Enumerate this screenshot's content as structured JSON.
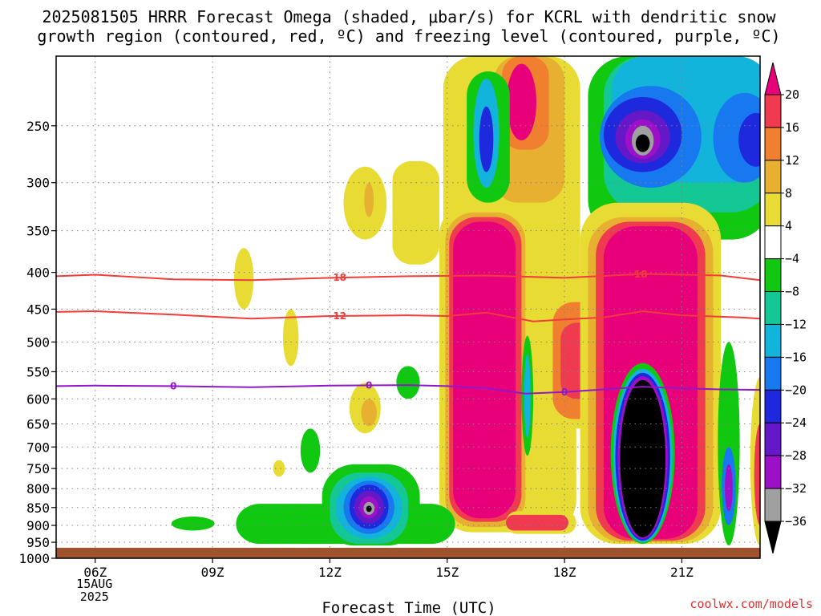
{
  "chart_data": {
    "type": "heatmap",
    "title_line1": "2025081505 HRRR Forecast Omega (shaded, μbar/s) for KCRL with dendritic snow",
    "title_line2": "growth region (contoured, red, ºC) and freezing level (contoured, purple, ºC)",
    "xlabel": "Forecast Time (UTC)",
    "ylabel": "",
    "credit": "coolwx.com/models",
    "x_ticks": [
      {
        "hour": 6,
        "label": "06Z",
        "date": "15AUG",
        "year": "2025"
      },
      {
        "hour": 9,
        "label": "09Z"
      },
      {
        "hour": 12,
        "label": "12Z"
      },
      {
        "hour": 15,
        "label": "15Z"
      },
      {
        "hour": 18,
        "label": "18Z"
      },
      {
        "hour": 21,
        "label": "21Z"
      }
    ],
    "xlim": [
      5,
      23
    ],
    "y_ticks": [
      250,
      300,
      350,
      400,
      450,
      500,
      550,
      600,
      650,
      700,
      750,
      800,
      850,
      900,
      950,
      1000
    ],
    "ylim": [
      200,
      1000
    ],
    "ground_level_hpa": 967,
    "y_scale": "log",
    "grid": true,
    "colorbar": {
      "labels": [
        "20",
        "16",
        "12",
        "8",
        "4",
        "−4",
        "−8",
        "−12",
        "−16",
        "−20",
        "−24",
        "−28",
        "−32",
        "−36"
      ],
      "colors": [
        "#e8007a",
        "#f03a50",
        "#f08030",
        "#e8b030",
        "#e8dc34",
        "#ffffff",
        "#10c810",
        "#14c896",
        "#12b4dc",
        "#1878f0",
        "#1e28dc",
        "#6418c8",
        "#9c10c8",
        "#a0a0a0",
        "#000000"
      ],
      "placement": "right"
    },
    "contours": [
      {
        "value": "-18",
        "color": "#f03c3c",
        "label_hours": [
          12.2,
          19.9
        ],
        "points": [
          [
            5,
            405
          ],
          [
            6,
            403
          ],
          [
            8,
            409
          ],
          [
            10,
            410
          ],
          [
            12,
            407
          ],
          [
            14,
            405
          ],
          [
            16,
            404
          ],
          [
            18,
            407
          ],
          [
            20,
            402
          ],
          [
            22,
            404
          ],
          [
            23,
            410
          ]
        ]
      },
      {
        "value": "-12",
        "color": "#f03c3c",
        "label_hours": [
          12.2
        ],
        "points": [
          [
            5,
            454
          ],
          [
            6,
            453
          ],
          [
            8,
            458
          ],
          [
            10,
            464
          ],
          [
            12,
            460
          ],
          [
            14,
            459
          ],
          [
            15,
            460
          ],
          [
            16,
            455
          ],
          [
            17.2,
            468
          ],
          [
            18,
            465
          ],
          [
            19,
            462
          ],
          [
            20,
            453
          ],
          [
            21,
            459
          ],
          [
            22.5,
            462
          ],
          [
            23,
            464
          ]
        ]
      },
      {
        "value": "0",
        "color": "#9018c8",
        "label_hours": [
          8,
          13,
          18
        ],
        "points": [
          [
            5,
            576
          ],
          [
            6,
            575
          ],
          [
            8,
            576
          ],
          [
            10,
            578
          ],
          [
            12,
            575
          ],
          [
            14,
            574
          ],
          [
            15,
            576
          ],
          [
            16,
            580
          ],
          [
            17,
            590
          ],
          [
            18,
            587
          ],
          [
            19,
            582
          ],
          [
            20,
            577
          ],
          [
            21,
            580
          ],
          [
            22,
            582
          ],
          [
            23,
            583
          ]
        ]
      }
    ],
    "omega_features": [
      {
        "hour": 16.0,
        "p_top": 330,
        "p_bottom": 930,
        "value": 20,
        "hour_halfwidth": 0.75
      },
      {
        "hour": 20.5,
        "p_top": 330,
        "p_bottom": 945,
        "value": 20,
        "hour_halfwidth": 1.2
      },
      {
        "hour": 20.0,
        "p_top": 560,
        "p_bottom": 940,
        "value": -36,
        "hour_halfwidth": 0.65
      },
      {
        "hour": 20.0,
        "p_top": 255,
        "p_bottom": 275,
        "value": -36,
        "hour_halfwidth": 0.3
      },
      {
        "hour": 16.9,
        "p_top": 200,
        "p_bottom": 260,
        "value": 20,
        "hour_halfwidth": 0.35
      },
      {
        "hour": 16.0,
        "p_top": 225,
        "p_bottom": 300,
        "value": -16,
        "hour_halfwidth": 0.3
      },
      {
        "hour": 13.0,
        "p_top": 800,
        "p_bottom": 900,
        "value": -36,
        "hour_halfwidth": 0.35
      },
      {
        "hour": 22.2,
        "p_top": 740,
        "p_bottom": 860,
        "value": -28,
        "hour_halfwidth": 0.3
      },
      {
        "hour": 13.0,
        "p_top": 300,
        "p_bottom": 330,
        "value": 8,
        "hour_halfwidth": 0.15
      },
      {
        "hour": 13.0,
        "p_top": 600,
        "p_bottom": 660,
        "value": 8,
        "hour_halfwidth": 0.2
      }
    ],
    "ground_color": "#a0522d"
  }
}
